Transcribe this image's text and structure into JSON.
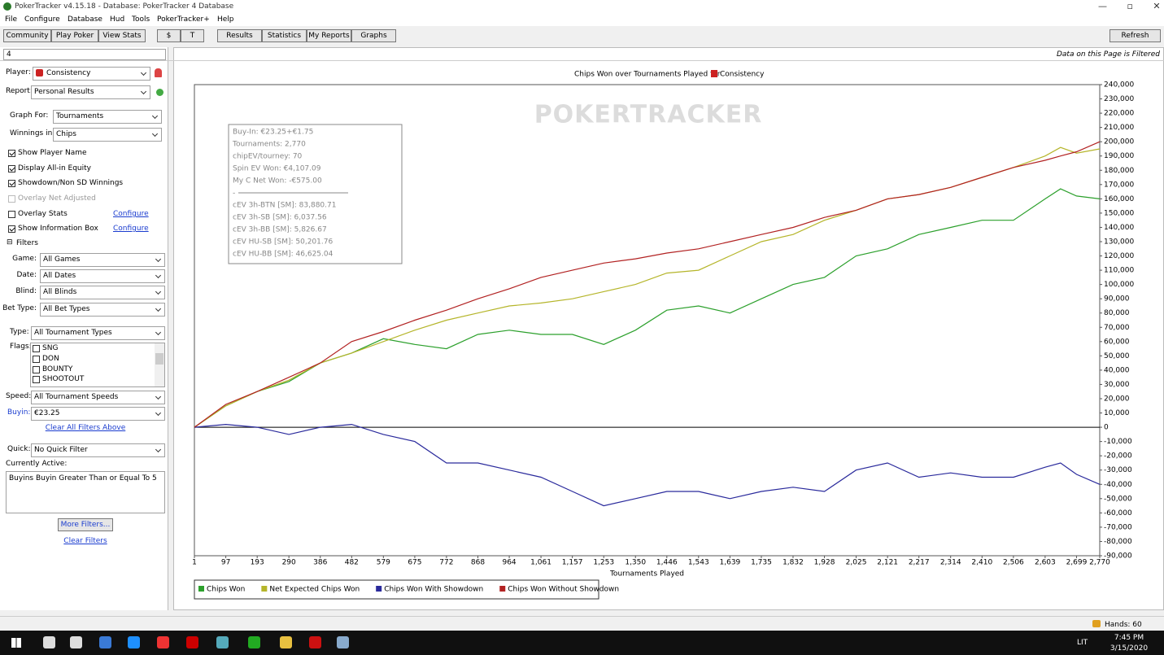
{
  "window": {
    "title": "PokerTracker v4.15.18 - Database: PokerTracker 4 Database"
  },
  "menu": [
    "File",
    "Configure",
    "Database",
    "Hud",
    "Tools",
    "PokerTracker+",
    "Help"
  ],
  "toolbar": {
    "left": [
      "Community",
      "Play Poker",
      "View Stats"
    ],
    "currency": [
      "$",
      "T"
    ],
    "tabs": [
      "Results",
      "Statistics",
      "My Reports",
      "Graphs"
    ],
    "refresh": "Refresh"
  },
  "sidebar": {
    "search": "4",
    "player": {
      "label": "Player:",
      "value": "Consistency"
    },
    "report": {
      "label": "Report:",
      "value": "Personal Results"
    },
    "graph_for": {
      "label": "Graph For:",
      "value": "Tournaments"
    },
    "winnings_in": {
      "label": "Winnings in:",
      "value": "Chips"
    },
    "options": [
      {
        "label": "Show Player Name",
        "checked": true
      },
      {
        "label": "Display All-in Equity",
        "checked": true
      },
      {
        "label": "Showdown/Non SD Winnings",
        "checked": true
      },
      {
        "label": "Overlay Net Adjusted",
        "checked": false,
        "disabled": true
      },
      {
        "label": "Overlay Stats",
        "checked": false,
        "link": "Configure"
      },
      {
        "label": "Show Information Box",
        "checked": true,
        "link": "Configure"
      }
    ],
    "filters_heading": "Filters",
    "filters": [
      {
        "label": "Game:",
        "value": "All Games"
      },
      {
        "label": "Date:",
        "value": "All Dates"
      },
      {
        "label": "Blind:",
        "value": "All Blinds"
      },
      {
        "label": "Bet Type:",
        "value": "All Bet Types"
      }
    ],
    "type": {
      "label": "Type:",
      "value": "All Tournament Types"
    },
    "flags": {
      "label": "Flags:",
      "items": [
        "SNG",
        "DON",
        "BOUNTY",
        "SHOOTOUT"
      ]
    },
    "speed": {
      "label": "Speed:",
      "value": "All Tournament Speeds"
    },
    "buyin": {
      "label": "Buyin:",
      "value": "€23.25"
    },
    "clear_above": "Clear All Filters Above",
    "quick": {
      "label": "Quick:",
      "value": "No Quick Filter"
    },
    "currently_active": {
      "label": "Currently Active:",
      "text": "Buyins Buyin Greater Than or Equal To 5"
    },
    "more_filters": "More Filters...",
    "clear_filters": "Clear Filters"
  },
  "filtered_note": "Data on this Page is Filtered",
  "chart_data": {
    "type": "line",
    "title": "Chips Won over Tournaments Played for",
    "title_player": "Consistency",
    "watermark": "POKERTRACKER",
    "x_label": "Tournaments Played",
    "info_box": [
      "Buy-In: €23.25+€1.75",
      "Tournaments: 2,770",
      "chipEV/tourney: 70",
      "Spin EV Won: €4,107.09",
      "My C Net Won: -€575.00",
      "-",
      "cEV 3h-BTN [SM]: 83,880.71",
      "cEV 3h-SB [SM]: 6,037.56",
      "cEV 3h-BB [SM]: 5,826.67",
      "cEV HU-SB [SM]: 50,201.76",
      "cEV HU-BB [SM]: 46,625.04"
    ],
    "x": [
      1,
      97,
      193,
      290,
      386,
      482,
      579,
      675,
      772,
      868,
      964,
      1061,
      1157,
      1253,
      1350,
      1446,
      1543,
      1639,
      1735,
      1832,
      1928,
      2025,
      2121,
      2217,
      2314,
      2410,
      2506,
      2603,
      2650,
      2699,
      2770
    ],
    "series": [
      {
        "name": "Chips Won",
        "color": "#2ca02c",
        "values": [
          0,
          15000,
          25000,
          32000,
          45000,
          52000,
          62000,
          58000,
          55000,
          65000,
          68000,
          65000,
          65000,
          58000,
          68000,
          82000,
          85000,
          80000,
          90000,
          100000,
          105000,
          120000,
          125000,
          135000,
          140000,
          145000,
          145000,
          160000,
          167000,
          162000,
          160000
        ]
      },
      {
        "name": "Net Expected Chips Won",
        "color": "#b5b52a",
        "values": [
          0,
          15000,
          25000,
          33000,
          45000,
          52000,
          60000,
          68000,
          75000,
          80000,
          85000,
          87000,
          90000,
          95000,
          100000,
          108000,
          110000,
          120000,
          130000,
          135000,
          145000,
          152000,
          160000,
          163000,
          168000,
          175000,
          182000,
          190000,
          196000,
          192000,
          195000
        ]
      },
      {
        "name": "Chips Won With Showdown",
        "color": "#2a2a9c",
        "values": [
          0,
          2000,
          0,
          -5000,
          0,
          2000,
          -5000,
          -10000,
          -25000,
          -25000,
          -30000,
          -35000,
          -45000,
          -55000,
          -50000,
          -45000,
          -45000,
          -50000,
          -45000,
          -42000,
          -45000,
          -30000,
          -25000,
          -35000,
          -32000,
          -35000,
          -35000,
          -28000,
          -25000,
          -33000,
          -40000
        ]
      },
      {
        "name": "Chips Won Without Showdown",
        "color": "#b22222",
        "values": [
          0,
          16000,
          25000,
          35000,
          45000,
          60000,
          67000,
          75000,
          82000,
          90000,
          97000,
          105000,
          110000,
          115000,
          118000,
          122000,
          125000,
          130000,
          135000,
          140000,
          147000,
          152000,
          160000,
          163000,
          168000,
          175000,
          182000,
          187000,
          190000,
          193000,
          200000
        ]
      }
    ],
    "xlim": [
      1,
      2770
    ],
    "xticks": [
      1,
      97,
      193,
      290,
      386,
      482,
      579,
      675,
      772,
      868,
      964,
      {
        "value": 1061,
        "label": "1,061"
      },
      {
        "value": 1157,
        "label": "1,157"
      },
      {
        "value": 1253,
        "label": "1,253"
      },
      {
        "value": 1350,
        "label": "1,350"
      },
      {
        "value": 1446,
        "label": "1,446"
      },
      {
        "value": 1543,
        "label": "1,543"
      },
      {
        "value": 1639,
        "label": "1,639"
      },
      {
        "value": 1735,
        "label": "1,735"
      },
      {
        "value": 1832,
        "label": "1,832"
      },
      {
        "value": 1928,
        "label": "1,928"
      },
      {
        "value": 2025,
        "label": "2,025"
      },
      {
        "value": 2121,
        "label": "2,121"
      },
      {
        "value": 2217,
        "label": "2,217"
      },
      {
        "value": 2314,
        "label": "2,314"
      },
      {
        "value": 2410,
        "label": "2,410"
      },
      {
        "value": 2506,
        "label": "2,506"
      },
      {
        "value": 2603,
        "label": "2,603"
      },
      {
        "value": 2699,
        "label": "2,699"
      },
      {
        "value": 2770,
        "label": "2,770"
      }
    ],
    "ylim": [
      -90000,
      240000
    ],
    "yticks": [
      {
        "value": -90000,
        "label": "-90,000"
      },
      {
        "value": -80000,
        "label": "-80,000"
      },
      {
        "value": -70000,
        "label": "-70,000"
      },
      {
        "value": -60000,
        "label": "-60,000"
      },
      {
        "value": -50000,
        "label": "-50,000"
      },
      {
        "value": -40000,
        "label": "-40,000"
      },
      {
        "value": -30000,
        "label": "-30,000"
      },
      {
        "value": -20000,
        "label": "-20,000"
      },
      {
        "value": -10000,
        "label": "-10,000"
      },
      0,
      {
        "value": 10000,
        "label": "10,000"
      },
      {
        "value": 20000,
        "label": "20,000"
      },
      {
        "value": 30000,
        "label": "30,000"
      },
      {
        "value": 40000,
        "label": "40,000"
      },
      {
        "value": 50000,
        "label": "50,000"
      },
      {
        "value": 60000,
        "label": "60,000"
      },
      {
        "value": 70000,
        "label": "70,000"
      },
      {
        "value": 80000,
        "label": "80,000"
      },
      {
        "value": 90000,
        "label": "90,000"
      },
      {
        "value": 100000,
        "label": "100,000"
      },
      {
        "value": 110000,
        "label": "110,000"
      },
      {
        "value": 120000,
        "label": "120,000"
      },
      {
        "value": 130000,
        "label": "130,000"
      },
      {
        "value": 140000,
        "label": "140,000"
      },
      {
        "value": 150000,
        "label": "150,000"
      },
      {
        "value": 160000,
        "label": "160,000"
      },
      {
        "value": 170000,
        "label": "170,000"
      },
      {
        "value": 180000,
        "label": "180,000"
      },
      {
        "value": 190000,
        "label": "190,000"
      },
      {
        "value": 200000,
        "label": "200,000"
      },
      {
        "value": 210000,
        "label": "210,000"
      },
      {
        "value": 220000,
        "label": "220,000"
      },
      {
        "value": 230000,
        "label": "230,000"
      },
      {
        "value": 240000,
        "label": "240,000"
      }
    ],
    "grid": false
  },
  "status": {
    "hands": "Hands: 60"
  },
  "taskbar": {
    "lang": "LIT",
    "time": "7:45 PM",
    "date": "3/15/2020"
  }
}
